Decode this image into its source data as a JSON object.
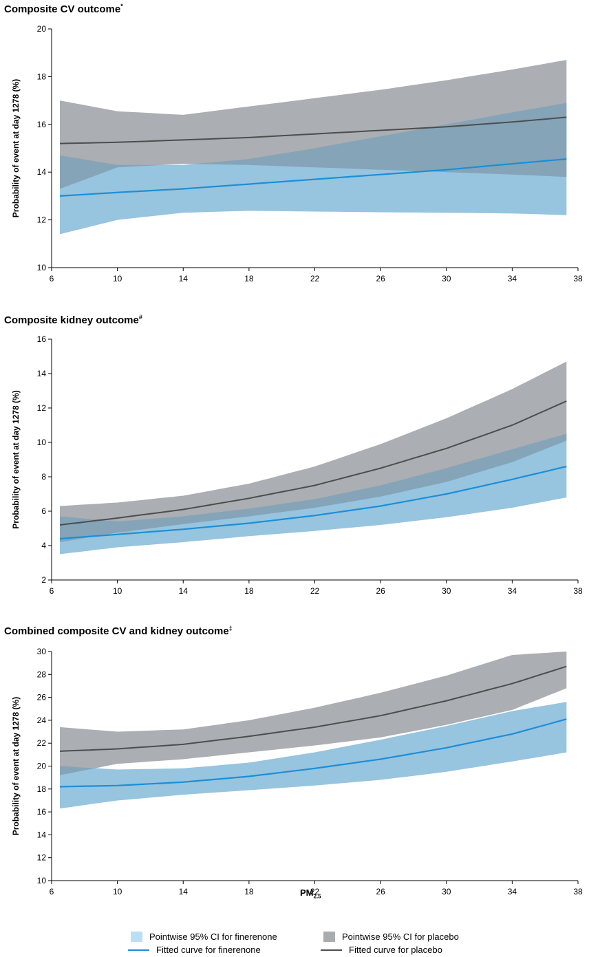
{
  "colors": {
    "fin_band": "#b9dff6",
    "pla_band": "#a9acaf",
    "overlap_band": "#6ea3c4",
    "fin_line": "#1a8fd8",
    "pla_line": "#4d4d4d"
  },
  "chart_data": [
    {
      "type": "line",
      "title": "Composite CV outcome",
      "title_mark": "*",
      "xlabel": "",
      "ylabel": "Probability of event at day 1278 (%)",
      "xlim": [
        6,
        38
      ],
      "ylim": [
        10,
        20
      ],
      "xticks": [
        6,
        10,
        14,
        18,
        22,
        26,
        30,
        34,
        38
      ],
      "yticks": [
        10,
        12,
        14,
        16,
        18,
        20
      ],
      "x": [
        6.5,
        10,
        14,
        18,
        22,
        26,
        30,
        34,
        37.3
      ],
      "series": [
        {
          "name": "Fitted curve for finerenone",
          "values": [
            13.0,
            13.15,
            13.3,
            13.5,
            13.7,
            13.9,
            14.1,
            14.35,
            14.55
          ],
          "lower": [
            11.4,
            12.0,
            12.3,
            12.38,
            12.35,
            12.32,
            12.3,
            12.27,
            12.2
          ],
          "upper": [
            14.7,
            14.3,
            14.3,
            14.55,
            15.0,
            15.5,
            16.0,
            16.5,
            16.9
          ]
        },
        {
          "name": "Fitted curve for placebo",
          "values": [
            15.2,
            15.25,
            15.35,
            15.45,
            15.6,
            15.75,
            15.9,
            16.1,
            16.3
          ],
          "lower": [
            13.3,
            14.2,
            14.35,
            14.3,
            14.2,
            14.1,
            14.0,
            13.9,
            13.8
          ],
          "upper": [
            17.0,
            16.55,
            16.4,
            16.75,
            17.1,
            17.45,
            17.85,
            18.3,
            18.7
          ]
        }
      ]
    },
    {
      "type": "line",
      "title": "Composite kidney outcome",
      "title_mark": "#",
      "xlabel": "",
      "ylabel": "Probability of event at day 1278 (%)",
      "xlim": [
        6,
        38
      ],
      "ylim": [
        2,
        16
      ],
      "xticks": [
        6,
        10,
        14,
        18,
        22,
        26,
        30,
        34,
        38
      ],
      "yticks": [
        2,
        4,
        6,
        8,
        10,
        12,
        14,
        16
      ],
      "x": [
        6.5,
        10,
        14,
        18,
        22,
        26,
        30,
        34,
        37.3
      ],
      "series": [
        {
          "name": "Fitted curve for finerenone",
          "values": [
            4.4,
            4.65,
            4.95,
            5.3,
            5.75,
            6.3,
            7.0,
            7.85,
            8.6
          ],
          "lower": [
            3.5,
            3.9,
            4.2,
            4.55,
            4.85,
            5.2,
            5.65,
            6.2,
            6.8
          ],
          "upper": [
            5.7,
            5.4,
            5.7,
            6.15,
            6.7,
            7.5,
            8.5,
            9.6,
            10.5
          ]
        },
        {
          "name": "Fitted curve for placebo",
          "values": [
            5.2,
            5.6,
            6.1,
            6.75,
            7.5,
            8.5,
            9.65,
            11.0,
            12.4
          ],
          "lower": [
            4.2,
            4.75,
            5.25,
            5.7,
            6.2,
            6.85,
            7.7,
            8.85,
            10.1
          ],
          "upper": [
            6.3,
            6.5,
            6.9,
            7.6,
            8.6,
            9.9,
            11.4,
            13.1,
            14.7
          ]
        }
      ]
    },
    {
      "type": "line",
      "title": "Combined composite CV and kidney outcome",
      "title_mark": "‡",
      "xlabel": "PM",
      "xlabel_sub": "2.5",
      "ylabel": "Probability of event at day 1278 (%)",
      "xlim": [
        6,
        38
      ],
      "ylim": [
        10,
        30
      ],
      "xticks": [
        6,
        10,
        14,
        18,
        22,
        26,
        30,
        34,
        38
      ],
      "yticks": [
        10,
        12,
        14,
        16,
        18,
        20,
        22,
        24,
        26,
        28,
        30
      ],
      "x": [
        6.5,
        10,
        14,
        18,
        22,
        26,
        30,
        34,
        37.3
      ],
      "series": [
        {
          "name": "Fitted curve for finerenone",
          "values": [
            18.2,
            18.3,
            18.6,
            19.1,
            19.8,
            20.6,
            21.6,
            22.8,
            24.1
          ],
          "lower": [
            16.3,
            17.0,
            17.5,
            17.9,
            18.3,
            18.8,
            19.5,
            20.4,
            21.2
          ],
          "upper": [
            20.0,
            19.7,
            19.8,
            20.3,
            21.2,
            22.3,
            23.5,
            24.8,
            25.6
          ]
        },
        {
          "name": "Fitted curve for placebo",
          "values": [
            21.3,
            21.5,
            21.9,
            22.6,
            23.4,
            24.4,
            25.7,
            27.2,
            28.7
          ],
          "lower": [
            19.2,
            20.2,
            20.6,
            21.2,
            21.8,
            22.5,
            23.6,
            24.9,
            26.8
          ],
          "upper": [
            23.4,
            23.0,
            23.2,
            24.0,
            25.1,
            26.4,
            27.9,
            29.7,
            30.0
          ]
        }
      ]
    }
  ],
  "legend": {
    "fin_ci": "Pointwise 95% CI for finerenone",
    "pla_ci": "Pointwise 95% CI for placebo",
    "fin_curve": "Fitted curve for finerenone",
    "pla_curve": "Fitted curve for placebo"
  }
}
